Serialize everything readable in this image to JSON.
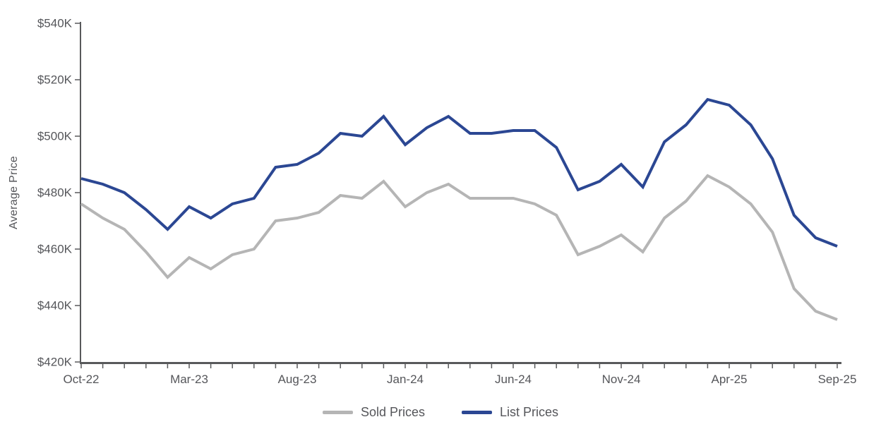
{
  "chart_data": {
    "type": "line",
    "title": "",
    "ylabel": "Average Price",
    "x": [
      "Oct-22",
      "Nov-22",
      "Dec-22",
      "Jan-23",
      "Feb-23",
      "Mar-23",
      "Apr-23",
      "May-23",
      "Jun-23",
      "Jul-23",
      "Aug-23",
      "Sep-23",
      "Oct-23",
      "Nov-23",
      "Dec-23",
      "Jan-24",
      "Feb-24",
      "Mar-24",
      "Apr-24",
      "May-24",
      "Jun-24",
      "Jul-24",
      "Aug-24",
      "Sep-24",
      "Oct-24",
      "Nov-24",
      "Dec-24",
      "Jan-25",
      "Feb-25",
      "Mar-25",
      "Apr-25",
      "May-25",
      "Jun-25",
      "Jul-25",
      "Aug-25",
      "Sep-25"
    ],
    "x_tick_labels": [
      "Oct-22",
      "Mar-23",
      "Aug-23",
      "Jan-24",
      "Jun-24",
      "Nov-24",
      "Apr-25",
      "Sep-25"
    ],
    "x_tick_indices": [
      0,
      5,
      10,
      15,
      20,
      25,
      30,
      35
    ],
    "ylim": [
      420,
      540
    ],
    "y_tick_values": [
      420,
      440,
      460,
      480,
      500,
      520,
      540
    ],
    "y_tick_labels": [
      "$420K",
      "$440K",
      "$460K",
      "$480K",
      "$500K",
      "$520K",
      "$540K"
    ],
    "grid": false,
    "legend_position": "bottom-center",
    "series": [
      {
        "name": "Sold Prices",
        "color": "#b5b5b5",
        "values": [
          476,
          471,
          467,
          459,
          450,
          457,
          453,
          458,
          460,
          470,
          471,
          473,
          479,
          478,
          484,
          475,
          480,
          483,
          478,
          478,
          478,
          476,
          472,
          458,
          461,
          465,
          459,
          471,
          477,
          486,
          482,
          476,
          466,
          446,
          438,
          435
        ]
      },
      {
        "name": "List Prices",
        "color": "#2B4793",
        "values": [
          485,
          483,
          480,
          474,
          467,
          475,
          471,
          476,
          478,
          489,
          490,
          494,
          501,
          500,
          507,
          497,
          503,
          507,
          501,
          501,
          502,
          502,
          496,
          481,
          484,
          490,
          482,
          498,
          504,
          513,
          511,
          504,
          492,
          472,
          464,
          461
        ]
      }
    ],
    "values_unit_label": "K"
  },
  "colors": {
    "axis": "#58595B",
    "text": "#55565A"
  }
}
